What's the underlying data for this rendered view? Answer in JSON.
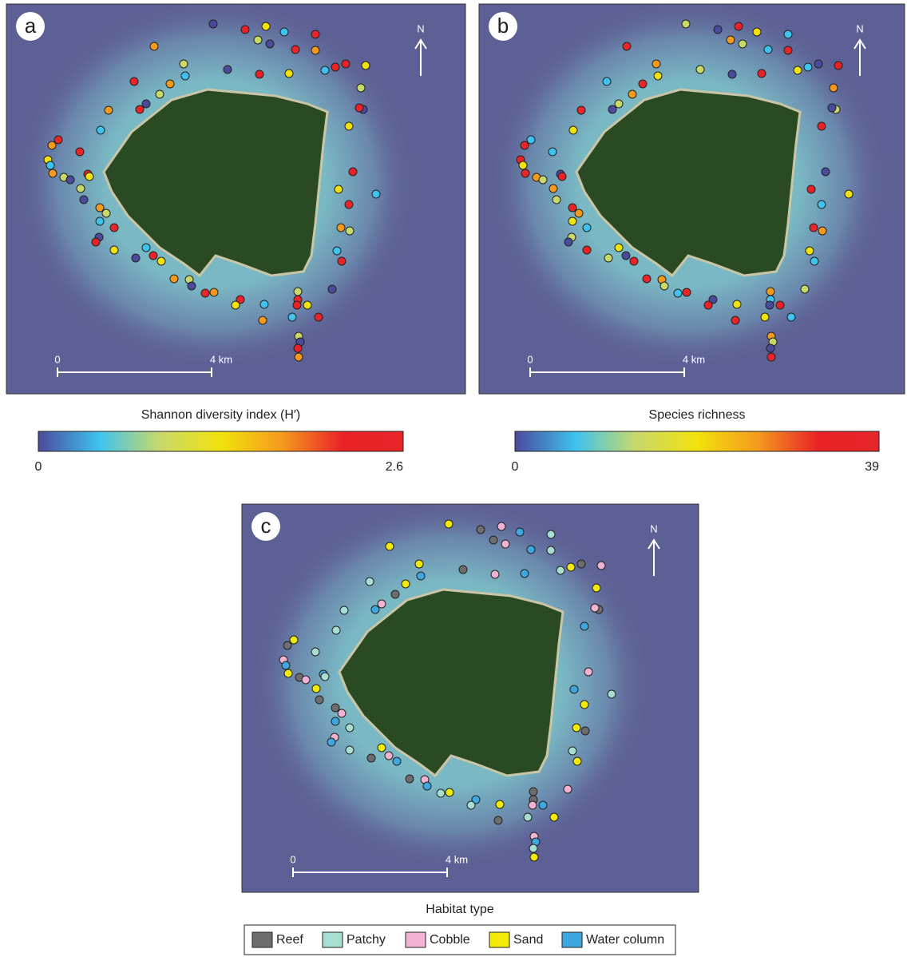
{
  "panels": [
    {
      "label": "a",
      "north": "N",
      "scale": [
        "0",
        "4 km"
      ]
    },
    {
      "label": "b",
      "north": "N",
      "scale": [
        "0",
        "4 km"
      ]
    },
    {
      "label": "c",
      "north": "N",
      "scale": [
        "0",
        "4 km"
      ]
    }
  ],
  "colorbars": [
    {
      "title": "Shannon diversity index (H′)",
      "min": 0,
      "max": 2.6
    },
    {
      "title": "Species richness",
      "min": 0,
      "max": 39
    }
  ],
  "colormap": [
    "#4b4a9c",
    "#3ec3ee",
    "#c8d96a",
    "#f2e20c",
    "#f49b1d",
    "#ea2227",
    "#e8262a"
  ],
  "legend": {
    "title": "Habitat type",
    "items": [
      {
        "name": "Reef",
        "color": "#6d6d6d"
      },
      {
        "name": "Patchy",
        "color": "#a6dfd2"
      },
      {
        "name": "Cobble",
        "color": "#f2b3d2"
      },
      {
        "name": "Sand",
        "color": "#f3ea08"
      },
      {
        "name": "Water column",
        "color": "#3fa7df"
      }
    ]
  }
}
